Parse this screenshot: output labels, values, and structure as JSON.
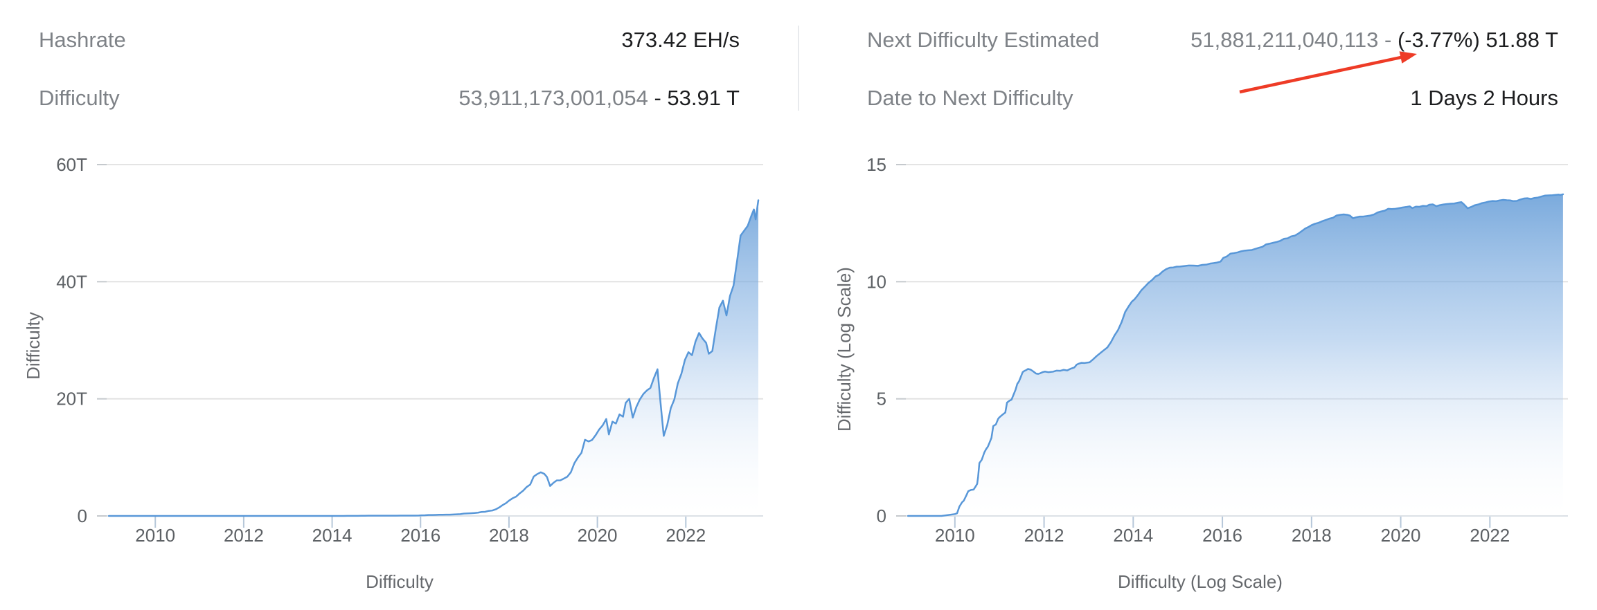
{
  "page": {
    "background": "#ffffff"
  },
  "stats": {
    "left": [
      {
        "label": "Hashrate",
        "value_gray": "",
        "value_dark": "373.42 EH/s"
      },
      {
        "label": "Difficulty",
        "value_gray": "53,911,173,001,054 ",
        "value_dark": "- 53.91 T"
      }
    ],
    "right": [
      {
        "label": "Next Difficulty Estimated",
        "value_gray": "51,881,211,040,113 - ",
        "value_dark": "(-3.77%) 51.88 T"
      },
      {
        "label": "Date to Next Difficulty",
        "value_gray": "",
        "value_dark": "1 Days 2 Hours"
      }
    ],
    "label_color": "#7e8287",
    "value_gray_color": "#7e8287",
    "value_dark_color": "#1d1e20"
  },
  "annotation": {
    "name": "red-arrow",
    "color": "#ee3b26",
    "points_at": "(-3.77%)"
  },
  "chart_data": [
    {
      "type": "area",
      "title": "",
      "xlabel": "Difficulty",
      "ylabel": "Difficulty",
      "x_tick_years": [
        2010,
        2012,
        2014,
        2016,
        2018,
        2020,
        2022
      ],
      "x_tick_labels": [
        "2010",
        "2012",
        "2014",
        "2016",
        "2018",
        "2020",
        "2022"
      ],
      "xlim": [
        2008.9,
        2023.75
      ],
      "y_tick_values": [
        0,
        20,
        40,
        60
      ],
      "y_tick_labels": [
        "0",
        "20T",
        "40T",
        "60T"
      ],
      "ylim": [
        0,
        60
      ],
      "unit": "difficulty in trillions (T)",
      "grid": "horizontal",
      "legend": "none",
      "line_color": "#5897d8",
      "fill_gradient_top": "#4d8dd0",
      "fill_gradient_bottom": "#ffffff",
      "series": [
        {
          "name": "Difficulty",
          "points": [
            [
              2008.95,
              1e-12
            ],
            [
              2009.3,
              1e-12
            ],
            [
              2009.7,
              1e-12
            ],
            [
              2010.0,
              1.2e-12
            ],
            [
              2010.05,
              1.3e-12
            ],
            [
              2010.1,
              2.5e-12
            ],
            [
              2010.16,
              3.8e-12
            ],
            [
              2010.2,
              4.5e-12
            ],
            [
              2010.26,
              7.8e-12
            ],
            [
              2010.3,
              1.14e-11
            ],
            [
              2010.36,
              1.29e-11
            ],
            [
              2010.42,
              1.34e-11
            ],
            [
              2010.46,
              1.74e-11
            ],
            [
              2010.5,
              2.35e-11
            ],
            [
              2010.52,
              4.54e-11
            ],
            [
              2010.55,
              1.82e-10
            ],
            [
              2010.6,
              2.44e-10
            ],
            [
              2010.63,
              3.52e-10
            ],
            [
              2010.66,
              5.12e-10
            ],
            [
              2010.7,
              7.13e-10
            ],
            [
              2010.74,
              9.18e-10
            ],
            [
              2010.78,
              1.38e-09
            ],
            [
              2010.82,
              2.15e-09
            ],
            [
              2010.86,
              6.87e-09
            ],
            [
              2010.92,
              8.08e-09
            ],
            [
              2010.97,
              1.4e-08
            ],
            [
              2011.0,
              1.63e-08
            ],
            [
              2011.08,
              2.2e-08
            ],
            [
              2011.13,
              2.6e-08
            ],
            [
              2011.17,
              6.9e-08
            ],
            [
              2011.22,
              8.24e-08
            ],
            [
              2011.27,
              9.23e-08
            ],
            [
              2011.32,
              1.57e-07
            ],
            [
              2011.36,
              2.44e-07
            ],
            [
              2011.4,
              4.35e-07
            ],
            [
              2011.44,
              5.67e-07
            ],
            [
              2011.48,
              8.77e-07
            ],
            [
              2011.52,
              1.38e-06
            ],
            [
              2011.56,
              1.56e-06
            ],
            [
              2011.6,
              1.69e-06
            ],
            [
              2011.64,
              1.89e-06
            ],
            [
              2011.7,
              1.76e-06
            ],
            [
              2011.76,
              1.47e-06
            ],
            [
              2011.82,
              1.2e-06
            ],
            [
              2011.87,
              1.16e-06
            ],
            [
              2011.92,
              1.25e-06
            ],
            [
              2011.97,
              1.38e-06
            ],
            [
              2012.02,
              1.46e-06
            ],
            [
              2012.1,
              1.37e-06
            ],
            [
              2012.2,
              1.44e-06
            ],
            [
              2012.28,
              1.6e-06
            ],
            [
              2012.36,
              1.57e-06
            ],
            [
              2012.44,
              1.73e-06
            ],
            [
              2012.52,
              1.63e-06
            ],
            [
              2012.6,
              1.94e-06
            ],
            [
              2012.68,
              2.19e-06
            ],
            [
              2012.73,
              2.87e-06
            ],
            [
              2012.78,
              3.18e-06
            ],
            [
              2012.84,
              3.44e-06
            ],
            [
              2012.9,
              3.37e-06
            ],
            [
              2012.96,
              3.5e-06
            ],
            [
              2013.02,
              3.61e-06
            ],
            [
              2013.1,
              4.87e-06
            ],
            [
              2013.18,
              6.7e-06
            ],
            [
              2013.26,
              8.97e-06
            ],
            [
              2013.34,
              1.187e-05
            ],
            [
              2013.42,
              1.561e-05
            ],
            [
              2013.5,
              2.616e-05
            ],
            [
              2013.58,
              5.081e-05
            ],
            [
              2013.66,
              8.693e-05
            ],
            [
              2013.74,
              0.0001893
            ],
            [
              2013.82,
              0.0005109
            ],
            [
              2013.9,
              0.0009084
            ],
            [
              2013.97,
              0.001418
            ],
            [
              2014.03,
              0.00179
            ],
            [
              2014.1,
              0.002621
            ],
            [
              2014.18,
              0.00425
            ],
            [
              2014.26,
              0.00612
            ],
            [
              2014.34,
              0.008853
            ],
            [
              2014.42,
              0.01176
            ],
            [
              2014.5,
              0.01682
            ],
            [
              2014.58,
              0.01973
            ],
            [
              2014.66,
              0.02743
            ],
            [
              2014.74,
              0.03466
            ],
            [
              2014.82,
              0.03983
            ],
            [
              2014.9,
              0.04064
            ],
            [
              2014.97,
              0.04397
            ],
            [
              2015.05,
              0.04446
            ],
            [
              2015.15,
              0.04668
            ],
            [
              2015.25,
              0.04945
            ],
            [
              2015.35,
              0.04881
            ],
            [
              2015.45,
              0.04759
            ],
            [
              2015.55,
              0.05228
            ],
            [
              2015.65,
              0.05426
            ],
            [
              2015.72,
              0.05934
            ],
            [
              2015.8,
              0.06225
            ],
            [
              2015.88,
              0.06585
            ],
            [
              2015.96,
              0.07272
            ],
            [
              2016.02,
              0.1039
            ],
            [
              2016.1,
              0.12
            ],
            [
              2016.18,
              0.1584
            ],
            [
              2016.26,
              0.1669
            ],
            [
              2016.34,
              0.1787
            ],
            [
              2016.42,
              0.1993
            ],
            [
              2016.5,
              0.2134
            ],
            [
              2016.58,
              0.2208
            ],
            [
              2016.66,
              0.2258
            ],
            [
              2016.74,
              0.2536
            ],
            [
              2016.82,
              0.2818
            ],
            [
              2016.9,
              0.3102
            ],
            [
              2016.98,
              0.393
            ],
            [
              2017.06,
              0.4222
            ],
            [
              2017.14,
              0.4608
            ],
            [
              2017.22,
              0.4996
            ],
            [
              2017.3,
              0.56
            ],
            [
              2017.38,
              0.6788
            ],
            [
              2017.46,
              0.7087
            ],
            [
              2017.54,
              0.8602
            ],
            [
              2017.62,
              0.9227
            ],
            [
              2017.7,
              1.1239
            ],
            [
              2017.78,
              1.4528
            ],
            [
              2017.86,
              1.8731
            ],
            [
              2017.94,
              2.2275
            ],
            [
              2018.0,
              2.6031
            ],
            [
              2018.08,
              3.0074
            ],
            [
              2018.16,
              3.2906
            ],
            [
              2018.24,
              3.8393
            ],
            [
              2018.32,
              4.3069
            ],
            [
              2018.4,
              4.9407
            ],
            [
              2018.48,
              5.3637
            ],
            [
              2018.56,
              6.7272
            ],
            [
              2018.64,
              7.1526
            ],
            [
              2018.72,
              7.455
            ],
            [
              2018.8,
              7.184
            ],
            [
              2018.86,
              6.6533
            ],
            [
              2018.93,
              5.1064
            ],
            [
              2019.0,
              5.6186
            ],
            [
              2019.08,
              6.0615
            ],
            [
              2019.16,
              6.0718
            ],
            [
              2019.24,
              6.3793
            ],
            [
              2019.32,
              6.7022
            ],
            [
              2019.4,
              7.4597
            ],
            [
              2019.48,
              9.0138
            ],
            [
              2019.56,
              9.9853
            ],
            [
              2019.64,
              10.772
            ],
            [
              2019.72,
              13.0081
            ],
            [
              2019.8,
              12.72
            ],
            [
              2019.88,
              12.9732
            ],
            [
              2019.96,
              13.7981
            ],
            [
              2020.04,
              14.7764
            ],
            [
              2020.12,
              15.4869
            ],
            [
              2020.2,
              16.5529
            ],
            [
              2020.26,
              13.9125
            ],
            [
              2020.34,
              16.1048
            ],
            [
              2020.42,
              15.7847
            ],
            [
              2020.5,
              17.3459
            ],
            [
              2020.58,
              16.9478
            ],
            [
              2020.64,
              19.3147
            ],
            [
              2020.72,
              19.9973
            ],
            [
              2020.8,
              16.7878
            ],
            [
              2020.88,
              18.5996
            ],
            [
              2020.96,
              19.9
            ],
            [
              2021.04,
              20.8235
            ],
            [
              2021.12,
              21.4344
            ],
            [
              2021.2,
              21.8656
            ],
            [
              2021.28,
              23.582
            ],
            [
              2021.36,
              25.0465
            ],
            [
              2021.42,
              19.9328
            ],
            [
              2021.5,
              13.6726
            ],
            [
              2021.58,
              15.5561
            ],
            [
              2021.66,
              18.4152
            ],
            [
              2021.74,
              19.893
            ],
            [
              2021.82,
              22.6741
            ],
            [
              2021.9,
              24.2723
            ],
            [
              2021.98,
              26.6432
            ],
            [
              2022.06,
              27.9672
            ],
            [
              2022.14,
              27.4527
            ],
            [
              2022.22,
              29.7944
            ],
            [
              2022.3,
              31.2511
            ],
            [
              2022.38,
              30.2833
            ],
            [
              2022.46,
              29.5702
            ],
            [
              2022.52,
              27.6938
            ],
            [
              2022.6,
              28.1723
            ],
            [
              2022.68,
              32.0454
            ],
            [
              2022.76,
              35.6103
            ],
            [
              2022.84,
              36.7609
            ],
            [
              2022.92,
              34.2405
            ],
            [
              2023.0,
              37.5905
            ],
            [
              2023.08,
              39.3509
            ],
            [
              2023.16,
              43.5517
            ],
            [
              2023.24,
              47.8878
            ],
            [
              2023.32,
              48.7135
            ],
            [
              2023.4,
              49.5497
            ],
            [
              2023.48,
              51.2293
            ],
            [
              2023.54,
              52.3504
            ],
            [
              2023.58,
              50.646
            ],
            [
              2023.64,
              53.9112
            ]
          ]
        }
      ]
    },
    {
      "type": "area",
      "title": "",
      "xlabel": "Difficulty (Log Scale)",
      "ylabel": "Difficulty (Log Scale)",
      "x_tick_years": [
        2010,
        2012,
        2014,
        2016,
        2018,
        2020,
        2022
      ],
      "x_tick_labels": [
        "2010",
        "2012",
        "2014",
        "2016",
        "2018",
        "2020",
        "2022"
      ],
      "xlim": [
        2008.9,
        2023.75
      ],
      "y_tick_values": [
        0,
        5,
        10,
        15
      ],
      "y_tick_labels": [
        "0",
        "5",
        "10",
        "15"
      ],
      "ylim": [
        0,
        15
      ],
      "unit": "log10 of absolute difficulty",
      "grid": "horizontal",
      "legend": "none",
      "line_color": "#5897d8",
      "fill_gradient_top": "#4d8dd0",
      "fill_gradient_bottom": "#ffffff",
      "derived_from_series": 0,
      "transform": "y = max(0, 12 + log10(difficulty_T))"
    }
  ]
}
